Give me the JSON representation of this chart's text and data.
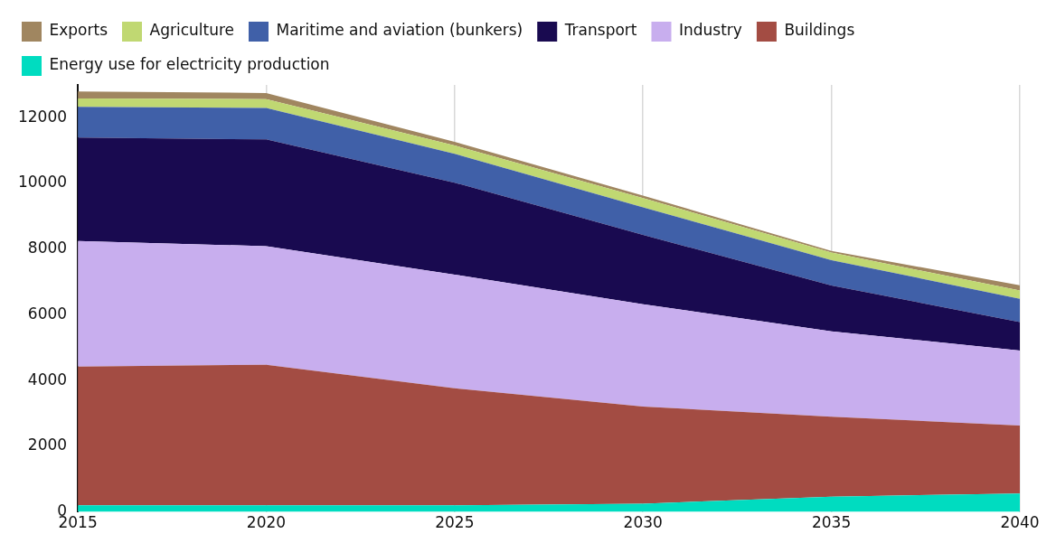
{
  "chart_data": {
    "type": "area",
    "stacked": true,
    "x": [
      2015,
      2020,
      2025,
      2030,
      2035,
      2040
    ],
    "xlim": [
      2015,
      2040
    ],
    "xticks": [
      2015,
      2020,
      2025,
      2030,
      2035,
      2040
    ],
    "ylim": [
      0,
      13000
    ],
    "yticks": [
      0,
      2000,
      4000,
      6000,
      8000,
      10000,
      12000
    ],
    "grid": "x",
    "legend": "top left",
    "marker": "none",
    "series": [
      {
        "name": "Energy use for electricity production",
        "color": "#00dcc0",
        "values": [
          200,
          200,
          200,
          250,
          465,
          560
        ]
      },
      {
        "name": "Buildings",
        "color": "#a34c43",
        "values": [
          4225,
          4280,
          3565,
          2960,
          2435,
          2070
        ]
      },
      {
        "name": "Industry",
        "color": "#c8aeee",
        "values": [
          3825,
          3610,
          3460,
          3115,
          2600,
          2280
        ]
      },
      {
        "name": "Transport",
        "color": "#190a50",
        "values": [
          3150,
          3250,
          2800,
          2110,
          1395,
          870
        ]
      },
      {
        "name": "Maritime and aviation (bunkers)",
        "color": "#4060a8",
        "values": [
          930,
          960,
          880,
          840,
          770,
          710
        ]
      },
      {
        "name": "Agriculture",
        "color": "#c0d872",
        "values": [
          260,
          270,
          250,
          280,
          230,
          250
        ]
      },
      {
        "name": "Exports",
        "color": "#a08660",
        "values": [
          210,
          185,
          110,
          75,
          50,
          160
        ]
      }
    ]
  }
}
